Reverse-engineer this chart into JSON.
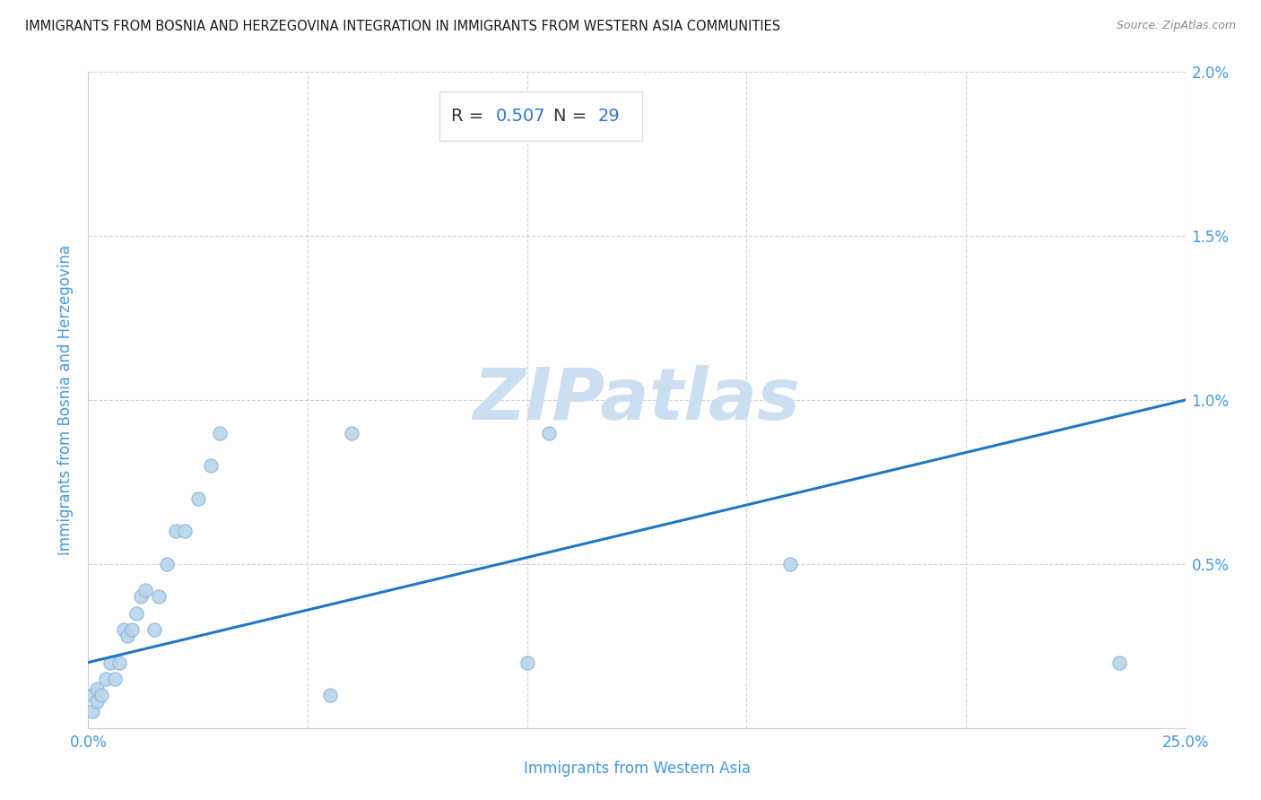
{
  "title": "IMMIGRANTS FROM BOSNIA AND HERZEGOVINA INTEGRATION IN IMMIGRANTS FROM WESTERN ASIA COMMUNITIES",
  "source": "Source: ZipAtlas.com",
  "xlabel": "Immigrants from Western Asia",
  "ylabel": "Immigrants from Bosnia and Herzegovina",
  "R": 0.507,
  "N": 29,
  "xlim": [
    0.0,
    0.25
  ],
  "ylim": [
    0.0,
    0.02
  ],
  "xticks": [
    0.0,
    0.05,
    0.1,
    0.15,
    0.2,
    0.25
  ],
  "xtick_labels": [
    "0.0%",
    "",
    "",
    "",
    "",
    "25.0%"
  ],
  "yticks": [
    0.0,
    0.005,
    0.01,
    0.015,
    0.02
  ],
  "ytick_labels": [
    "",
    "0.5%",
    "1.0%",
    "1.5%",
    "2.0%"
  ],
  "scatter_color": "#b8d4ea",
  "scatter_edge_color": "#8ab4d8",
  "line_color": "#2176c7",
  "title_color": "#1a1a1a",
  "axis_label_color": "#4499dd",
  "tick_color": "#4499dd",
  "watermark_color": "#ccdff0",
  "watermark": "ZIPatlas",
  "points_x": [
    0.001,
    0.001,
    0.002,
    0.002,
    0.003,
    0.004,
    0.005,
    0.006,
    0.007,
    0.008,
    0.009,
    0.01,
    0.011,
    0.012,
    0.013,
    0.015,
    0.016,
    0.018,
    0.02,
    0.022,
    0.025,
    0.028,
    0.03,
    0.055,
    0.06,
    0.1,
    0.105,
    0.16,
    0.235
  ],
  "points_y": [
    0.0005,
    0.001,
    0.0008,
    0.0012,
    0.001,
    0.0015,
    0.002,
    0.0015,
    0.002,
    0.003,
    0.0028,
    0.003,
    0.0035,
    0.004,
    0.0042,
    0.003,
    0.004,
    0.005,
    0.006,
    0.006,
    0.007,
    0.008,
    0.009,
    0.001,
    0.009,
    0.002,
    0.009,
    0.005,
    0.002
  ],
  "line_x_start": 0.0,
  "line_x_end": 0.25,
  "line_y_start": 0.002,
  "line_y_end": 0.01,
  "point_size": 120,
  "grid_color": "#cccccc",
  "grid_linestyle": "--",
  "spine_color": "#cccccc",
  "box_color": "#dddddd",
  "annotation_dark": "#333333",
  "annotation_blue": "#3377cc"
}
